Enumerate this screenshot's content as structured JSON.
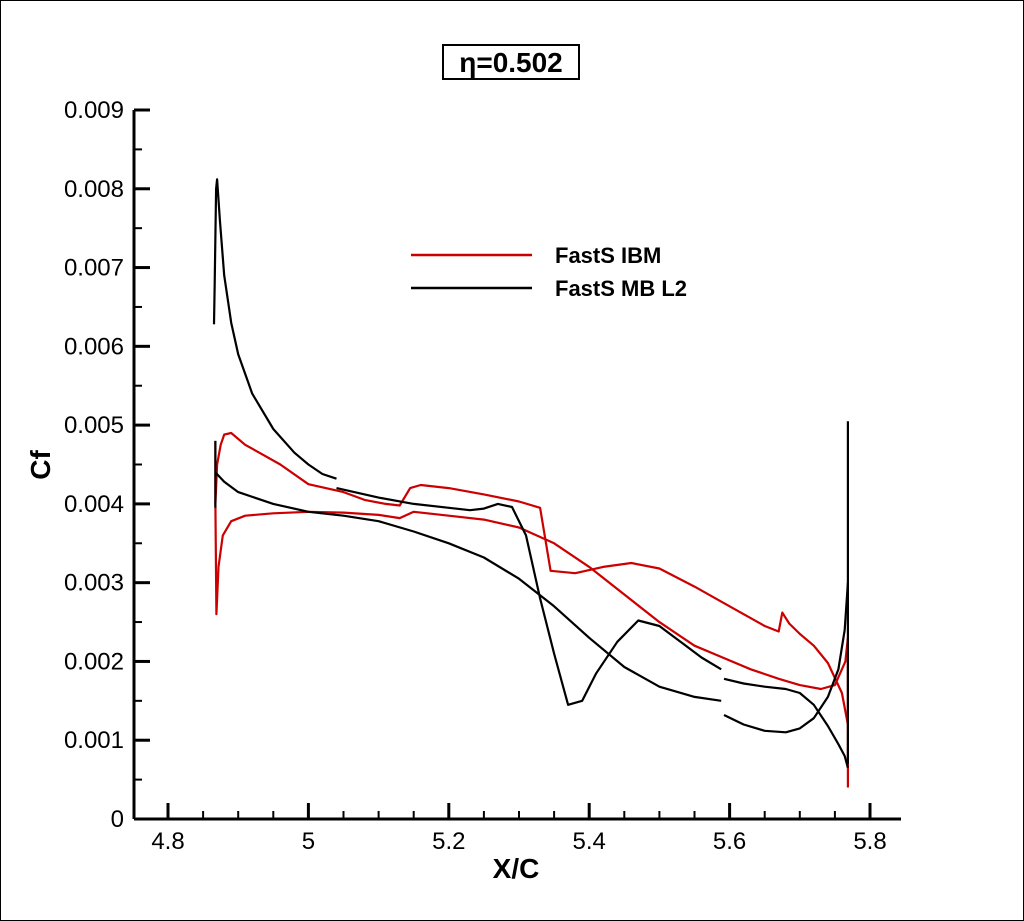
{
  "chart_data": {
    "type": "line",
    "title": "η=0.502",
    "xlabel": "X/C",
    "ylabel": "Cf",
    "xlim": [
      4.75,
      5.85
    ],
    "ylim": [
      0,
      0.009
    ],
    "xticks": [
      4.8,
      5,
      5.2,
      5.4,
      5.6,
      5.8
    ],
    "xtick_labels": [
      "4.8",
      "5",
      "5.2",
      "5.4",
      "5.6",
      "5.8"
    ],
    "yticks": [
      0,
      0.001,
      0.002,
      0.003,
      0.004,
      0.005,
      0.006,
      0.007,
      0.008,
      0.009
    ],
    "ytick_labels": [
      "0",
      "0.001",
      "0.002",
      "0.003",
      "0.004",
      "0.005",
      "0.006",
      "0.007",
      "0.008",
      "0.009"
    ],
    "grid": false,
    "legend_position": "upper-center",
    "colors": {
      "FastS IBM": "#cc0000",
      "FastS MB L2": "#000000"
    },
    "series": [
      {
        "name": "FastS IBM",
        "color": "#cc0000",
        "segments": [
          [
            [
              4.8675,
              0.004
            ],
            [
              4.869,
              0.0026
            ],
            [
              4.872,
              0.0032
            ],
            [
              4.878,
              0.0036
            ],
            [
              4.89,
              0.00378
            ],
            [
              4.91,
              0.00385
            ],
            [
              4.95,
              0.00388
            ],
            [
              5.0,
              0.0039
            ],
            [
              5.05,
              0.00389
            ],
            [
              5.1,
              0.00386
            ],
            [
              5.13,
              0.00382
            ],
            [
              5.15,
              0.0039
            ],
            [
              5.2,
              0.00385
            ],
            [
              5.25,
              0.0038
            ],
            [
              5.3,
              0.0037
            ],
            [
              5.35,
              0.0035
            ],
            [
              5.4,
              0.0032
            ],
            [
              5.45,
              0.00285
            ],
            [
              5.5,
              0.0025
            ],
            [
              5.55,
              0.0022
            ],
            [
              5.59,
              0.00205
            ],
            [
              5.63,
              0.0019
            ],
            [
              5.67,
              0.00178
            ],
            [
              5.7,
              0.0017
            ],
            [
              5.73,
              0.00165
            ],
            [
              5.75,
              0.0017
            ],
            [
              5.765,
              0.002
            ],
            [
              5.7685,
              0.0023
            ]
          ],
          [
            [
              4.8675,
              0.004
            ],
            [
              4.87,
              0.0045
            ],
            [
              4.875,
              0.00475
            ],
            [
              4.88,
              0.00488
            ],
            [
              4.89,
              0.0049
            ],
            [
              4.91,
              0.00475
            ],
            [
              4.93,
              0.00465
            ],
            [
              4.96,
              0.0045
            ],
            [
              5.0,
              0.00425
            ],
            [
              5.05,
              0.00415
            ],
            [
              5.08,
              0.00405
            ],
            [
              5.11,
              0.004
            ],
            [
              5.13,
              0.00398
            ],
            [
              5.145,
              0.0042
            ],
            [
              5.16,
              0.00424
            ],
            [
              5.2,
              0.0042
            ],
            [
              5.25,
              0.00412
            ],
            [
              5.3,
              0.00403
            ],
            [
              5.33,
              0.00395
            ],
            [
              5.345,
              0.00315
            ],
            [
              5.38,
              0.00312
            ],
            [
              5.42,
              0.0032
            ],
            [
              5.46,
              0.00325
            ],
            [
              5.5,
              0.00318
            ],
            [
              5.55,
              0.00295
            ],
            [
              5.6,
              0.0027
            ],
            [
              5.65,
              0.00245
            ],
            [
              5.67,
              0.00238
            ],
            [
              5.675,
              0.00262
            ],
            [
              5.685,
              0.00248
            ],
            [
              5.7,
              0.00235
            ],
            [
              5.72,
              0.0022
            ],
            [
              5.74,
              0.00198
            ],
            [
              5.76,
              0.0016
            ],
            [
              5.7685,
              0.0012
            ]
          ],
          [
            [
              4.8675,
              0.004
            ],
            [
              4.8675,
              0.0048
            ]
          ],
          [
            [
              5.7685,
              0.0004
            ],
            [
              5.7685,
              0.0023
            ]
          ]
        ]
      },
      {
        "name": "FastS MB L2",
        "color": "#000000",
        "segments": [
          [
            [
              4.8655,
              0.00628
            ],
            [
              4.8665,
              0.0068
            ],
            [
              4.8685,
              0.008
            ],
            [
              4.87,
              0.00812
            ],
            [
              4.874,
              0.0076
            ],
            [
              4.88,
              0.0069
            ],
            [
              4.89,
              0.0063
            ],
            [
              4.9,
              0.0059
            ],
            [
              4.92,
              0.0054
            ],
            [
              4.95,
              0.00495
            ],
            [
              4.98,
              0.00465
            ],
            [
              5.0,
              0.0045
            ],
            [
              5.02,
              0.00438
            ],
            [
              5.04,
              0.00432
            ]
          ],
          [
            [
              5.04,
              0.0042
            ],
            [
              5.1,
              0.00408
            ],
            [
              5.15,
              0.004
            ],
            [
              5.2,
              0.00395
            ],
            [
              5.23,
              0.00392
            ],
            [
              5.25,
              0.00394
            ],
            [
              5.27,
              0.004
            ],
            [
              5.29,
              0.00396
            ],
            [
              5.31,
              0.0036
            ],
            [
              5.33,
              0.0028
            ],
            [
              5.35,
              0.0021
            ],
            [
              5.37,
              0.00145
            ],
            [
              5.39,
              0.0015
            ],
            [
              5.41,
              0.00185
            ],
            [
              5.44,
              0.00225
            ],
            [
              5.47,
              0.00252
            ],
            [
              5.5,
              0.00245
            ],
            [
              5.53,
              0.00225
            ],
            [
              5.56,
              0.00205
            ],
            [
              5.588,
              0.0019
            ]
          ],
          [
            [
              4.8675,
              0.0044
            ],
            [
              4.88,
              0.00428
            ],
            [
              4.9,
              0.00415
            ],
            [
              4.95,
              0.004
            ],
            [
              5.0,
              0.0039
            ],
            [
              5.05,
              0.00385
            ],
            [
              5.1,
              0.00378
            ],
            [
              5.15,
              0.00365
            ],
            [
              5.2,
              0.0035
            ],
            [
              5.25,
              0.00332
            ],
            [
              5.3,
              0.00305
            ],
            [
              5.35,
              0.0027
            ],
            [
              5.4,
              0.0023
            ],
            [
              5.45,
              0.00193
            ],
            [
              5.5,
              0.00168
            ],
            [
              5.55,
              0.00155
            ],
            [
              5.588,
              0.0015
            ]
          ],
          [
            [
              5.592,
              0.00178
            ],
            [
              5.62,
              0.00172
            ],
            [
              5.65,
              0.00168
            ],
            [
              5.68,
              0.00165
            ],
            [
              5.7,
              0.0016
            ],
            [
              5.72,
              0.00145
            ],
            [
              5.74,
              0.00118
            ],
            [
              5.755,
              0.00095
            ],
            [
              5.764,
              0.0008
            ],
            [
              5.7685,
              0.00065
            ]
          ],
          [
            [
              5.592,
              0.00132
            ],
            [
              5.62,
              0.0012
            ],
            [
              5.65,
              0.00112
            ],
            [
              5.68,
              0.0011
            ],
            [
              5.7,
              0.00115
            ],
            [
              5.72,
              0.00128
            ],
            [
              5.74,
              0.00155
            ],
            [
              5.755,
              0.0019
            ],
            [
              5.764,
              0.0024
            ],
            [
              5.7685,
              0.003
            ]
          ],
          [
            [
              4.8675,
              0.00395
            ],
            [
              4.8675,
              0.0048
            ]
          ],
          [
            [
              5.7685,
              0.0007
            ],
            [
              5.7685,
              0.00505
            ]
          ]
        ]
      }
    ]
  }
}
